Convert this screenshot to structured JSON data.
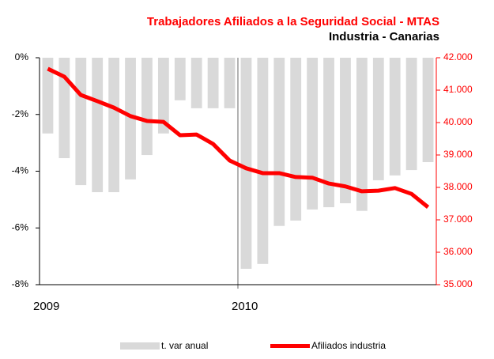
{
  "chart_data": {
    "type": "bar-line",
    "title": "Trabajadores Afiliados a la Seguridad Social - MTAS",
    "subtitle": "Industria - Canarias",
    "categories": [
      "2009",
      null,
      null,
      null,
      null,
      null,
      null,
      null,
      null,
      null,
      null,
      null,
      "2010",
      null,
      null,
      null,
      null,
      null,
      null,
      null,
      null,
      null,
      null,
      null
    ],
    "series": [
      {
        "name": "t. var anual",
        "type": "bar",
        "color": "#d9d9d9",
        "axis": "y",
        "values": [
          -2.67,
          -3.54,
          -4.49,
          -4.74,
          -4.74,
          -4.29,
          -3.43,
          -2.67,
          -1.5,
          -1.78,
          -1.78,
          -1.78,
          -7.44,
          -7.27,
          -5.93,
          -5.74,
          -5.35,
          -5.27,
          -5.13,
          -5.4,
          -4.32,
          -4.15,
          -3.96,
          -3.68
        ]
      },
      {
        "name": "Afiliados industria",
        "type": "line",
        "color": "#ff0000",
        "axis": "y2",
        "values": [
          41660,
          41415,
          40850,
          40660,
          40460,
          40200,
          40050,
          40020,
          39610,
          39630,
          39340,
          38830,
          38590,
          38440,
          38440,
          38320,
          38300,
          38120,
          38030,
          37880,
          37900,
          37980,
          37800,
          37390
        ]
      }
    ],
    "ylim": [
      -8,
      0
    ],
    "yticks": [
      {
        "value": 0,
        "label": "0%"
      },
      {
        "value": -2,
        "label": "-2%"
      },
      {
        "value": -4,
        "label": "-4%"
      },
      {
        "value": -6,
        "label": "-6%"
      },
      {
        "value": -8,
        "label": "-8%"
      }
    ],
    "y2lim": [
      35000,
      42000
    ],
    "y2ticks": [
      {
        "value": 42000,
        "label": "42.000"
      },
      {
        "value": 41000,
        "label": "41.000"
      },
      {
        "value": 40000,
        "label": "40.000"
      },
      {
        "value": 39000,
        "label": "39.000"
      },
      {
        "value": 38000,
        "label": "38.000"
      },
      {
        "value": 37000,
        "label": "37.000"
      },
      {
        "value": 36000,
        "label": "36.000"
      },
      {
        "value": 35000,
        "label": "35.000"
      }
    ],
    "legend": "bottom"
  }
}
